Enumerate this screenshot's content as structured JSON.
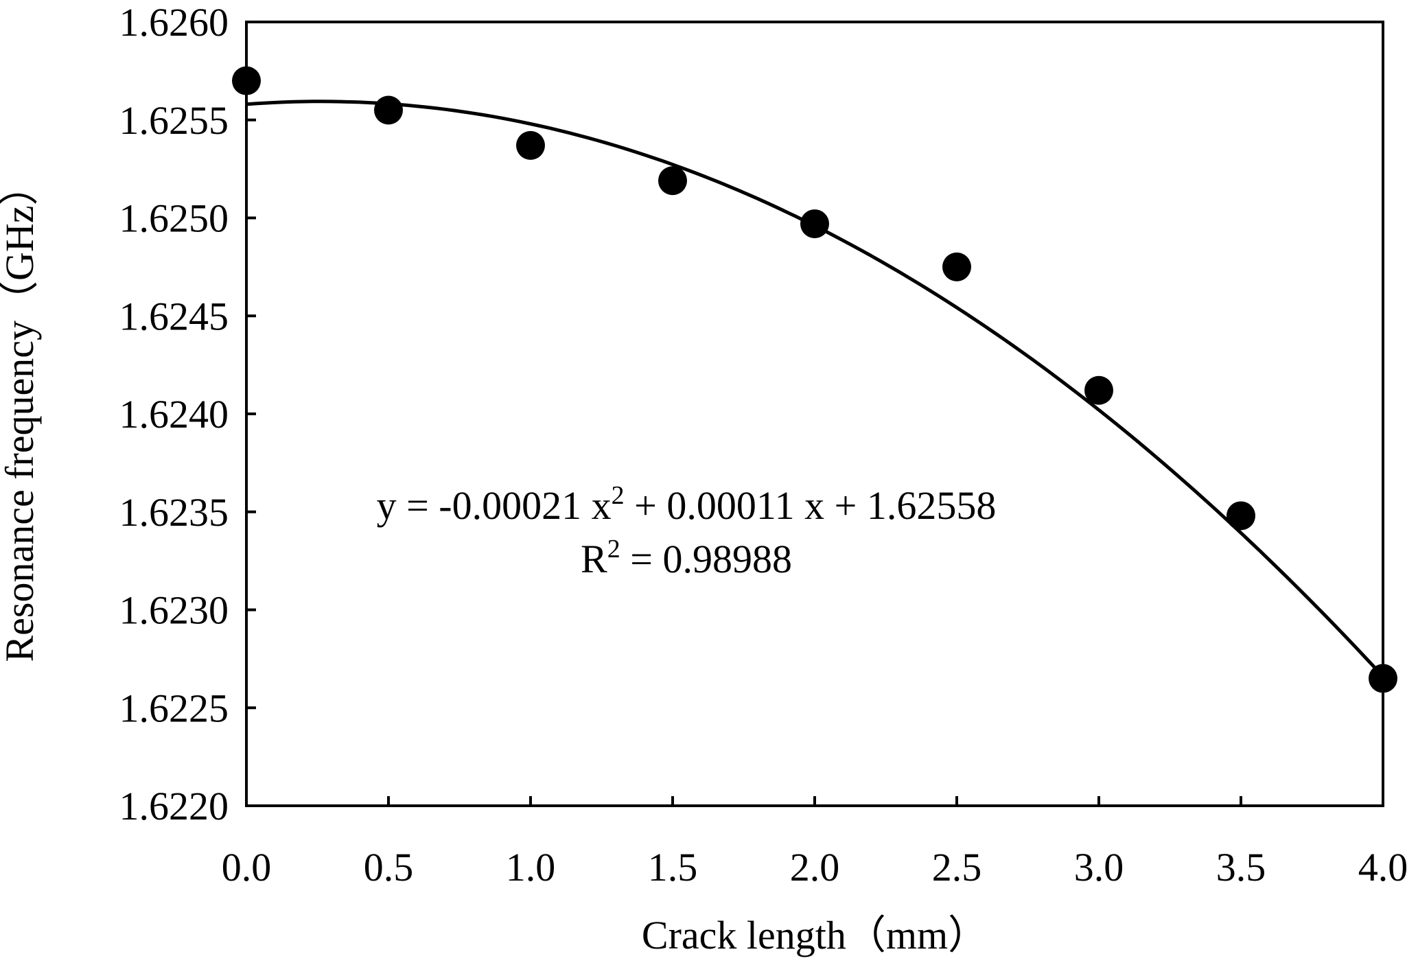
{
  "chart_data": {
    "type": "scatter",
    "title": "",
    "xlabel": "Crack length（mm）",
    "ylabel": "Resonance frequency（GHz）",
    "xlim": [
      0.0,
      4.0
    ],
    "ylim": [
      1.622,
      1.626
    ],
    "xticks": [
      "0.0",
      "0.5",
      "1.0",
      "1.5",
      "2.0",
      "2.5",
      "3.0",
      "3.5",
      "4.0"
    ],
    "yticks": [
      "1.6220",
      "1.6225",
      "1.6230",
      "1.6235",
      "1.6240",
      "1.6245",
      "1.6250",
      "1.6255",
      "1.6260"
    ],
    "grid": false,
    "series": [
      {
        "x": [
          0.0,
          0.5,
          1.0,
          1.5,
          2.0,
          2.5,
          3.0,
          3.5,
          4.0
        ],
        "y": [
          1.6257,
          1.62555,
          1.62537,
          1.62519,
          1.62497,
          1.62475,
          1.62412,
          1.62348,
          1.62265
        ],
        "marker": "filled-circle",
        "color": "#000000"
      }
    ],
    "fit": {
      "type": "polynomial",
      "coefficients": {
        "a": -0.00021,
        "b": 0.00011,
        "c": 1.62558
      },
      "color": "#000000"
    },
    "annotation": {
      "equation": {
        "y": "y = -0.00021 x",
        "sup": "2",
        "rest": " + 0.00011 x + 1.62558"
      },
      "r2": {
        "r": "R",
        "sup": "2",
        "rest": " = 0.98988"
      }
    }
  }
}
